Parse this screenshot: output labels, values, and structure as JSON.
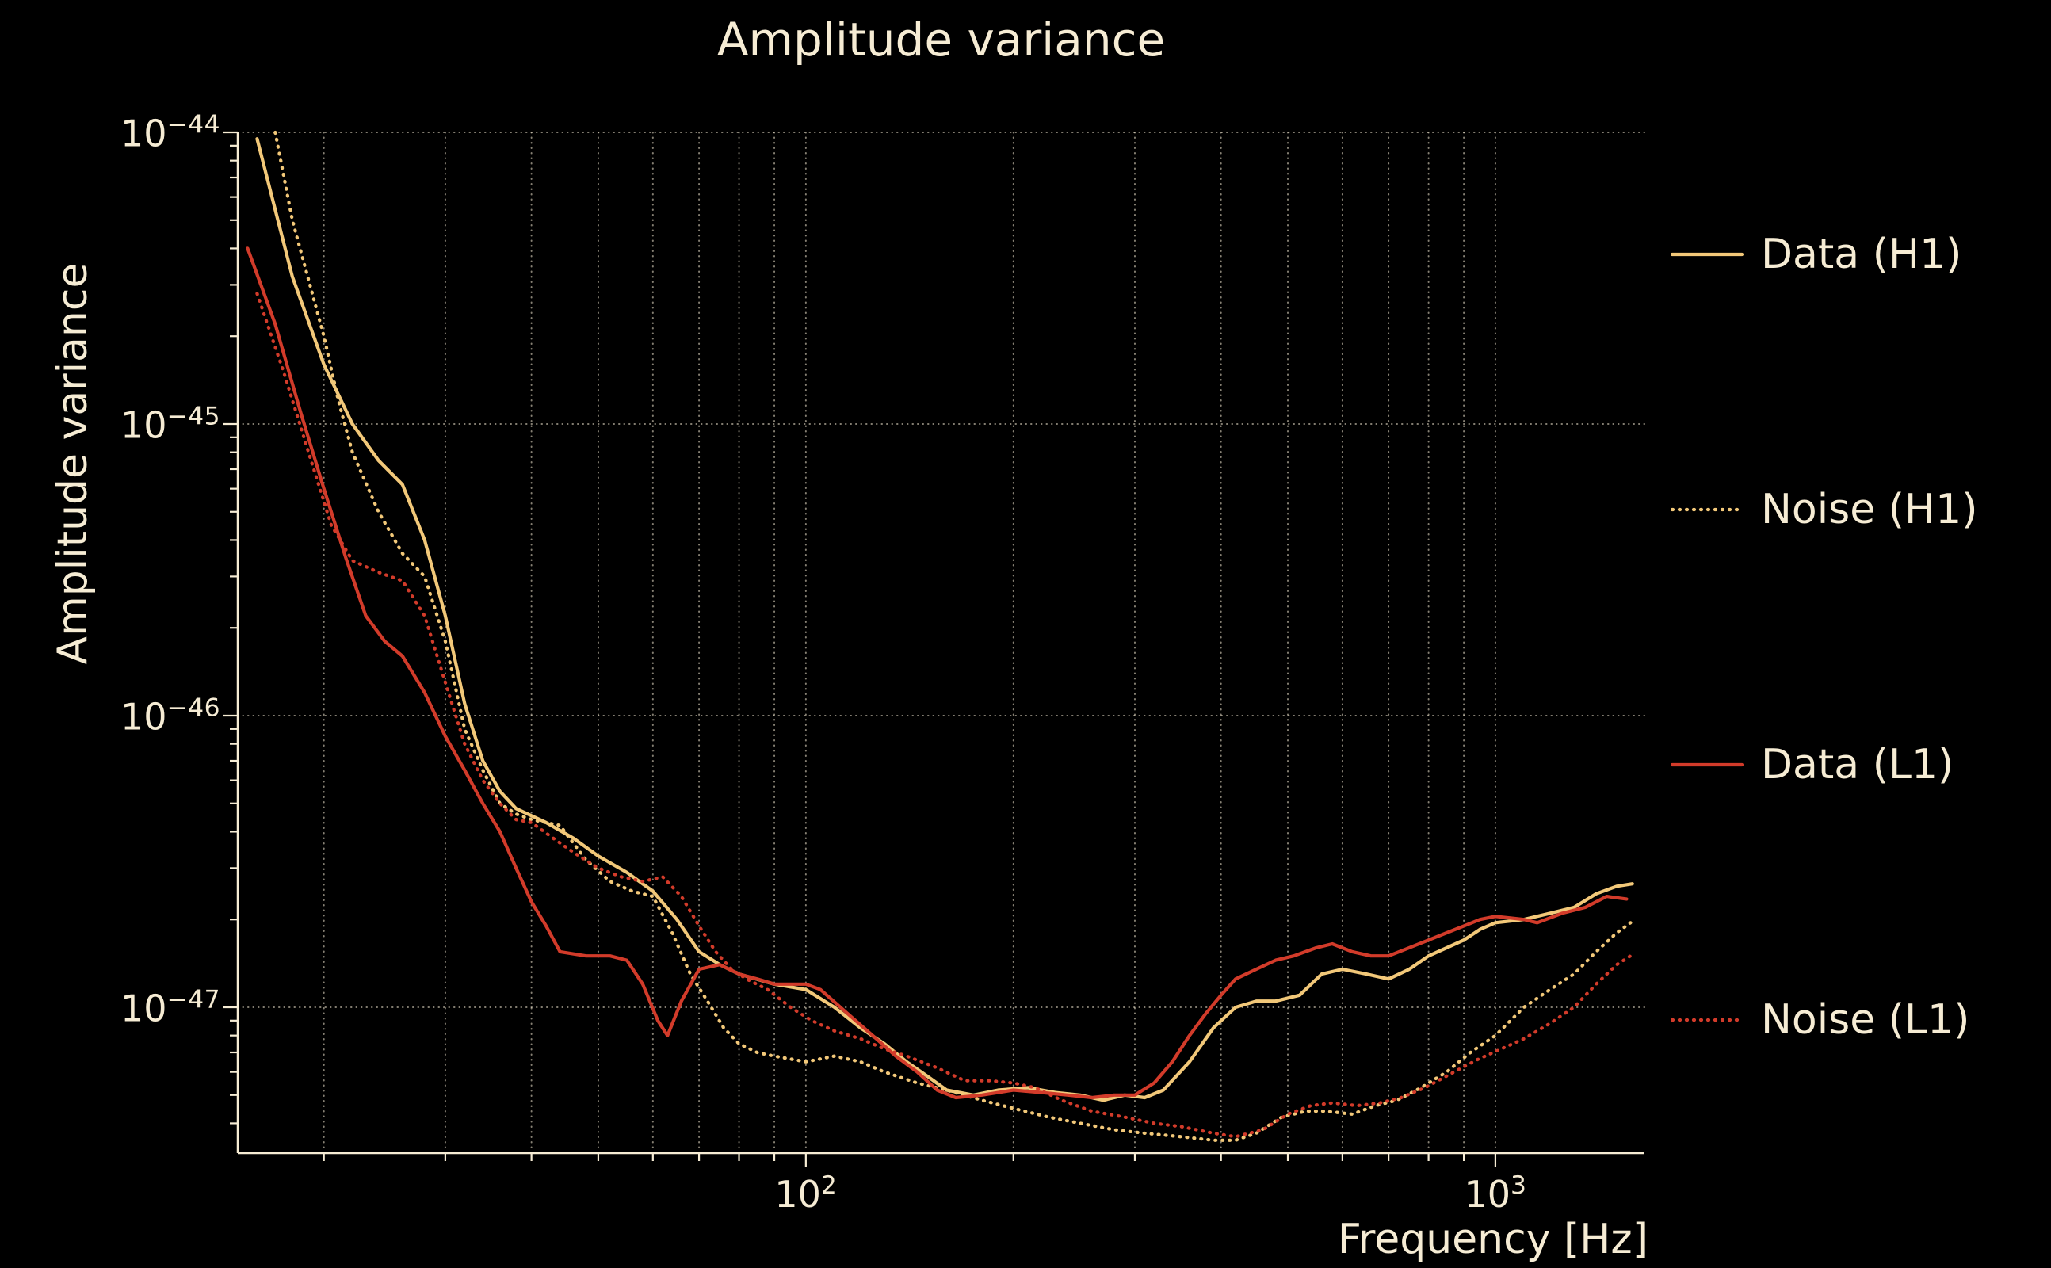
{
  "title": "Amplitude variance",
  "axes": {
    "x": {
      "label": "Frequency [Hz]",
      "scale": "log",
      "major_ticks": [
        {
          "value": 100,
          "base": "10",
          "exp": "2"
        },
        {
          "value": 1000,
          "base": "10",
          "exp": "3"
        }
      ]
    },
    "y": {
      "label": "Amplitude variance",
      "scale": "log",
      "major_ticks": [
        {
          "value": 1e-44,
          "base": "10",
          "exp": "−44"
        },
        {
          "value": 1e-45,
          "base": "10",
          "exp": "−45"
        },
        {
          "value": 1e-46,
          "base": "10",
          "exp": "−46"
        },
        {
          "value": 1e-47,
          "base": "10",
          "exp": "−47"
        }
      ]
    }
  },
  "colors": {
    "background": "#000000",
    "text": "#f6ecd4",
    "grid": "#f6ecd4",
    "h1": "#f2c879",
    "l1": "#d23b2a"
  },
  "chart_data": {
    "type": "line",
    "title": "Amplitude variance",
    "xlabel": "Frequency [Hz]",
    "ylabel": "Amplitude variance",
    "xscale": "log",
    "yscale": "log",
    "xlim": [
      15,
      1645
    ],
    "ylim": [
      3.162e-48,
      1e-44
    ],
    "grid": true,
    "legend_position": "right-outside",
    "series": [
      {
        "name": "Data (H1)",
        "color": "#f2c879",
        "style": "solid",
        "points": [
          [
            16,
            9.5e-45
          ],
          [
            18,
            3.2e-45
          ],
          [
            20,
            1.6e-45
          ],
          [
            22,
            1e-45
          ],
          [
            24,
            7.5e-46
          ],
          [
            26,
            6.2e-46
          ],
          [
            28,
            4e-46
          ],
          [
            30,
            2.2e-46
          ],
          [
            32,
            1.1e-46
          ],
          [
            34,
            7e-47
          ],
          [
            36,
            5.5e-47
          ],
          [
            38,
            4.8e-47
          ],
          [
            42,
            4.3e-47
          ],
          [
            46,
            3.8e-47
          ],
          [
            50,
            3.3e-47
          ],
          [
            55,
            2.9e-47
          ],
          [
            60,
            2.5e-47
          ],
          [
            65,
            2e-47
          ],
          [
            70,
            1.55e-47
          ],
          [
            75,
            1.4e-47
          ],
          [
            80,
            1.3e-47
          ],
          [
            90,
            1.2e-47
          ],
          [
            100,
            1.15e-47
          ],
          [
            110,
            1e-47
          ],
          [
            120,
            8.5e-48
          ],
          [
            130,
            7.5e-48
          ],
          [
            140,
            6.5e-48
          ],
          [
            150,
            5.8e-48
          ],
          [
            160,
            5.2e-48
          ],
          [
            175,
            5e-48
          ],
          [
            190,
            5.2e-48
          ],
          [
            210,
            5.3e-48
          ],
          [
            230,
            5.1e-48
          ],
          [
            250,
            5e-48
          ],
          [
            270,
            4.8e-48
          ],
          [
            290,
            5e-48
          ],
          [
            310,
            4.9e-48
          ],
          [
            330,
            5.2e-48
          ],
          [
            360,
            6.5e-48
          ],
          [
            390,
            8.5e-48
          ],
          [
            420,
            1e-47
          ],
          [
            450,
            1.05e-47
          ],
          [
            480,
            1.05e-47
          ],
          [
            520,
            1.1e-47
          ],
          [
            560,
            1.3e-47
          ],
          [
            600,
            1.35e-47
          ],
          [
            650,
            1.3e-47
          ],
          [
            700,
            1.25e-47
          ],
          [
            750,
            1.35e-47
          ],
          [
            800,
            1.5e-47
          ],
          [
            850,
            1.6e-47
          ],
          [
            900,
            1.7e-47
          ],
          [
            950,
            1.85e-47
          ],
          [
            1000,
            1.95e-47
          ],
          [
            1100,
            2e-47
          ],
          [
            1200,
            2.1e-47
          ],
          [
            1300,
            2.2e-47
          ],
          [
            1400,
            2.45e-47
          ],
          [
            1500,
            2.6e-47
          ],
          [
            1580,
            2.65e-47
          ]
        ]
      },
      {
        "name": "Noise (H1)",
        "color": "#f2c879",
        "style": "dotted",
        "points": [
          [
            17,
            1e-44
          ],
          [
            18,
            5e-45
          ],
          [
            20,
            2e-45
          ],
          [
            21,
            1.2e-45
          ],
          [
            22,
            8e-46
          ],
          [
            24,
            5e-46
          ],
          [
            26,
            3.6e-46
          ],
          [
            28,
            3e-46
          ],
          [
            30,
            1.8e-46
          ],
          [
            32,
            9e-47
          ],
          [
            34,
            6.5e-47
          ],
          [
            36,
            5e-47
          ],
          [
            38,
            4.6e-47
          ],
          [
            40,
            4.4e-47
          ],
          [
            44,
            4.2e-47
          ],
          [
            48,
            3.2e-47
          ],
          [
            52,
            2.7e-47
          ],
          [
            56,
            2.5e-47
          ],
          [
            60,
            2.4e-47
          ],
          [
            64,
            1.8e-47
          ],
          [
            68,
            1.3e-47
          ],
          [
            72,
            1.05e-47
          ],
          [
            76,
            8.5e-48
          ],
          [
            80,
            7.5e-48
          ],
          [
            85,
            7e-48
          ],
          [
            90,
            6.8e-48
          ],
          [
            100,
            6.5e-48
          ],
          [
            110,
            6.8e-48
          ],
          [
            120,
            6.5e-48
          ],
          [
            130,
            6e-48
          ],
          [
            145,
            5.5e-48
          ],
          [
            160,
            5.2e-48
          ],
          [
            180,
            4.8e-48
          ],
          [
            200,
            4.5e-48
          ],
          [
            225,
            4.2e-48
          ],
          [
            250,
            4e-48
          ],
          [
            280,
            3.8e-48
          ],
          [
            310,
            3.7e-48
          ],
          [
            350,
            3.6e-48
          ],
          [
            390,
            3.5e-48
          ],
          [
            420,
            3.5e-48
          ],
          [
            450,
            3.7e-48
          ],
          [
            490,
            4.2e-48
          ],
          [
            530,
            4.4e-48
          ],
          [
            570,
            4.4e-48
          ],
          [
            620,
            4.3e-48
          ],
          [
            670,
            4.6e-48
          ],
          [
            720,
            4.8e-48
          ],
          [
            780,
            5.3e-48
          ],
          [
            850,
            6e-48
          ],
          [
            920,
            7e-48
          ],
          [
            1000,
            8e-48
          ],
          [
            1100,
            1e-47
          ],
          [
            1200,
            1.15e-47
          ],
          [
            1300,
            1.3e-47
          ],
          [
            1400,
            1.55e-47
          ],
          [
            1500,
            1.8e-47
          ],
          [
            1570,
            1.95e-47
          ]
        ]
      },
      {
        "name": "Data (L1)",
        "color": "#d23b2a",
        "style": "solid",
        "points": [
          [
            15.5,
            4e-45
          ],
          [
            17,
            2.2e-45
          ],
          [
            18.5,
            1.1e-45
          ],
          [
            20,
            6e-46
          ],
          [
            21.5,
            3.5e-46
          ],
          [
            23,
            2.2e-46
          ],
          [
            24.5,
            1.8e-46
          ],
          [
            26,
            1.6e-46
          ],
          [
            28,
            1.2e-46
          ],
          [
            30,
            8.5e-47
          ],
          [
            32,
            6.5e-47
          ],
          [
            34,
            5e-47
          ],
          [
            36,
            4e-47
          ],
          [
            38,
            3e-47
          ],
          [
            40,
            2.3e-47
          ],
          [
            42,
            1.9e-47
          ],
          [
            44,
            1.55e-47
          ],
          [
            48,
            1.5e-47
          ],
          [
            52,
            1.5e-47
          ],
          [
            55,
            1.45e-47
          ],
          [
            58,
            1.2e-47
          ],
          [
            61,
            9e-48
          ],
          [
            63,
            8e-48
          ],
          [
            66,
            1.05e-47
          ],
          [
            70,
            1.35e-47
          ],
          [
            75,
            1.4e-47
          ],
          [
            80,
            1.3e-47
          ],
          [
            85,
            1.25e-47
          ],
          [
            90,
            1.2e-47
          ],
          [
            100,
            1.2e-47
          ],
          [
            105,
            1.15e-47
          ],
          [
            115,
            9.5e-48
          ],
          [
            125,
            8e-48
          ],
          [
            135,
            6.8e-48
          ],
          [
            145,
            6e-48
          ],
          [
            155,
            5.2e-48
          ],
          [
            165,
            4.9e-48
          ],
          [
            180,
            5e-48
          ],
          [
            200,
            5.2e-48
          ],
          [
            220,
            5.1e-48
          ],
          [
            240,
            5e-48
          ],
          [
            260,
            4.9e-48
          ],
          [
            280,
            5e-48
          ],
          [
            300,
            5e-48
          ],
          [
            320,
            5.5e-48
          ],
          [
            340,
            6.5e-48
          ],
          [
            360,
            8e-48
          ],
          [
            380,
            9.5e-48
          ],
          [
            400,
            1.1e-47
          ],
          [
            420,
            1.25e-47
          ],
          [
            450,
            1.35e-47
          ],
          [
            480,
            1.45e-47
          ],
          [
            510,
            1.5e-47
          ],
          [
            550,
            1.6e-47
          ],
          [
            580,
            1.65e-47
          ],
          [
            620,
            1.55e-47
          ],
          [
            660,
            1.5e-47
          ],
          [
            700,
            1.5e-47
          ],
          [
            750,
            1.6e-47
          ],
          [
            800,
            1.7e-47
          ],
          [
            850,
            1.8e-47
          ],
          [
            900,
            1.9e-47
          ],
          [
            950,
            2e-47
          ],
          [
            1000,
            2.05e-47
          ],
          [
            1100,
            2e-47
          ],
          [
            1150,
            1.95e-47
          ],
          [
            1250,
            2.1e-47
          ],
          [
            1350,
            2.2e-47
          ],
          [
            1450,
            2.4e-47
          ],
          [
            1550,
            2.35e-47
          ]
        ]
      },
      {
        "name": "Noise (L1)",
        "color": "#d23b2a",
        "style": "dotted",
        "points": [
          [
            16,
            2.8e-45
          ],
          [
            17.5,
            1.5e-45
          ],
          [
            19,
            8e-46
          ],
          [
            20.5,
            4.5e-46
          ],
          [
            22,
            3.4e-46
          ],
          [
            24,
            3.1e-46
          ],
          [
            26,
            2.9e-46
          ],
          [
            28,
            2.2e-46
          ],
          [
            30,
            1.3e-46
          ],
          [
            32,
            8e-47
          ],
          [
            34,
            6e-47
          ],
          [
            36,
            5e-47
          ],
          [
            38,
            4.4e-47
          ],
          [
            40,
            4.3e-47
          ],
          [
            43,
            3.8e-47
          ],
          [
            46,
            3.4e-47
          ],
          [
            50,
            3e-47
          ],
          [
            54,
            2.8e-47
          ],
          [
            58,
            2.7e-47
          ],
          [
            62,
            2.8e-47
          ],
          [
            66,
            2.4e-47
          ],
          [
            70,
            1.9e-47
          ],
          [
            74,
            1.55e-47
          ],
          [
            78,
            1.35e-47
          ],
          [
            82,
            1.25e-47
          ],
          [
            88,
            1.15e-47
          ],
          [
            95,
            1e-47
          ],
          [
            102,
            9e-48
          ],
          [
            110,
            8.3e-48
          ],
          [
            120,
            7.8e-48
          ],
          [
            130,
            7.2e-48
          ],
          [
            140,
            6.8e-48
          ],
          [
            155,
            6.2e-48
          ],
          [
            170,
            5.6e-48
          ],
          [
            185,
            5.6e-48
          ],
          [
            200,
            5.5e-48
          ],
          [
            215,
            5.3e-48
          ],
          [
            235,
            4.8e-48
          ],
          [
            260,
            4.4e-48
          ],
          [
            290,
            4.2e-48
          ],
          [
            320,
            4e-48
          ],
          [
            350,
            3.9e-48
          ],
          [
            390,
            3.7e-48
          ],
          [
            420,
            3.6e-48
          ],
          [
            460,
            3.8e-48
          ],
          [
            500,
            4.3e-48
          ],
          [
            540,
            4.6e-48
          ],
          [
            580,
            4.7e-48
          ],
          [
            630,
            4.6e-48
          ],
          [
            680,
            4.7e-48
          ],
          [
            730,
            4.9e-48
          ],
          [
            790,
            5.3e-48
          ],
          [
            860,
            5.9e-48
          ],
          [
            940,
            6.6e-48
          ],
          [
            1020,
            7.2e-48
          ],
          [
            1100,
            7.8e-48
          ],
          [
            1200,
            8.8e-48
          ],
          [
            1300,
            1e-47
          ],
          [
            1400,
            1.2e-47
          ],
          [
            1500,
            1.4e-47
          ],
          [
            1570,
            1.5e-47
          ]
        ]
      }
    ]
  }
}
